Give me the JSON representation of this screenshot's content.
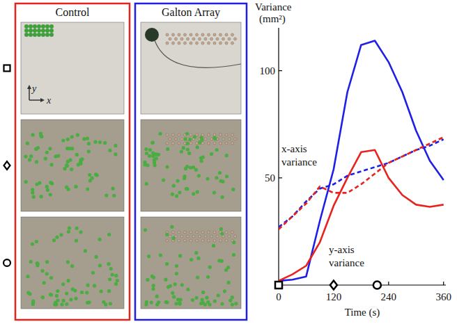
{
  "chart_data": {
    "type": "line",
    "xlabel": "Time (s)",
    "ylabel": "Variance (mm²)",
    "x": [
      0,
      30,
      60,
      90,
      120,
      150,
      180,
      210,
      240,
      270,
      300,
      330,
      360
    ],
    "xlim": [
      0,
      365
    ],
    "xticks": [
      0,
      120,
      240,
      360
    ],
    "ylim": [
      0,
      120
    ],
    "yticks": [
      50,
      100
    ],
    "grid": false,
    "series": [
      {
        "color": "#1f1fe6",
        "line_style": "solid",
        "values": [
          2,
          2.5,
          4,
          30,
          54,
          90,
          112,
          114,
          104,
          90,
          72,
          58,
          49
        ]
      },
      {
        "color": "#e8221c",
        "line_style": "solid",
        "values": [
          2,
          5,
          9,
          20,
          37,
          50,
          62,
          63,
          50,
          42,
          37.5,
          36.5,
          37.5
        ]
      },
      {
        "color": "#1f1fe6",
        "line_style": "dashed",
        "values": [
          27,
          32,
          39,
          45,
          47,
          51,
          53,
          55,
          57,
          60,
          63,
          65,
          68
        ]
      },
      {
        "color": "#e8221c",
        "line_style": "dashed",
        "values": [
          26,
          32,
          38,
          46,
          43,
          43,
          47,
          52,
          57,
          60,
          63,
          66,
          69
        ]
      }
    ],
    "annotations": [
      "x-axis variance",
      "y-axis variance"
    ],
    "snapshots": {
      "x": [
        0,
        120,
        215
      ],
      "markers": [
        "square",
        "diamond",
        "circle"
      ]
    }
  },
  "photo_panels": [
    {
      "title": "Control",
      "color": "#e8221c"
    },
    {
      "title": "Galton Array",
      "color": "#1f1fe6"
    }
  ],
  "photo_axes": {
    "x": "x",
    "y": "y"
  }
}
